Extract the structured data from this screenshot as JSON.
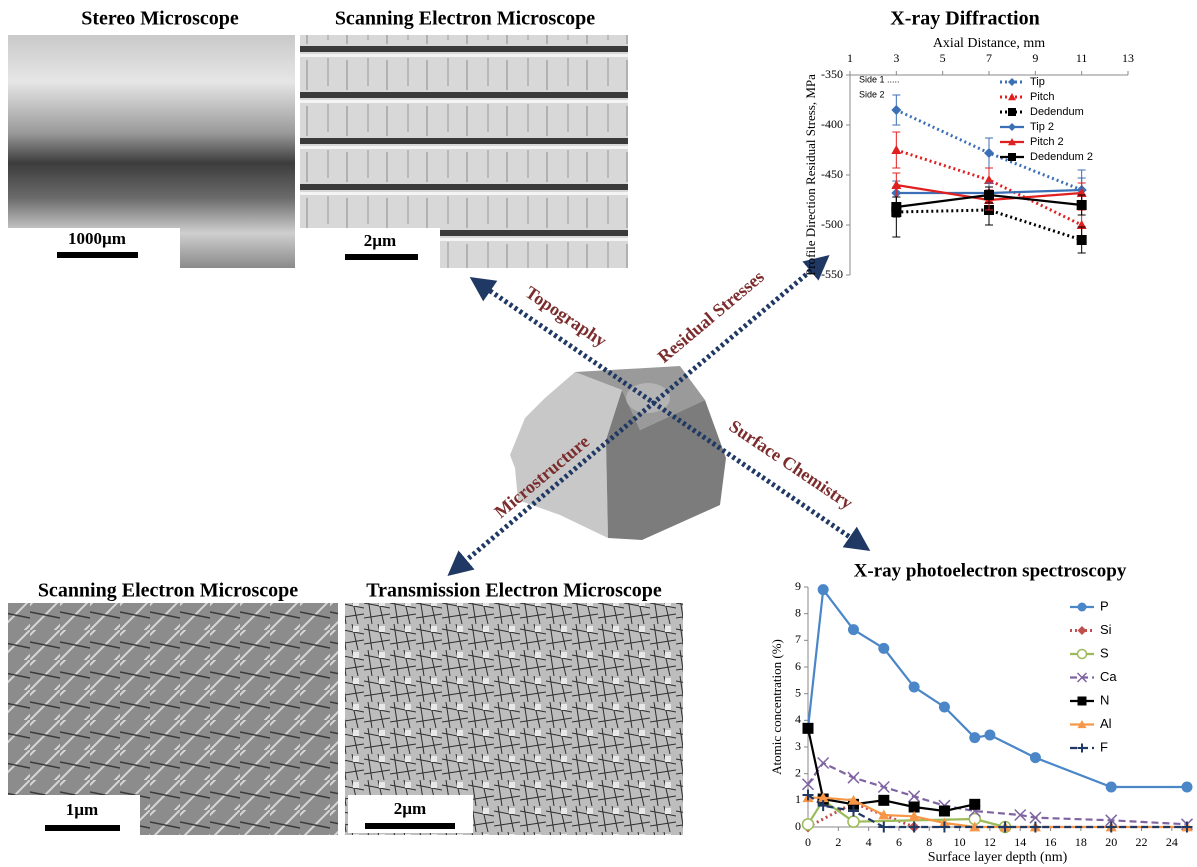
{
  "panels": [
    {
      "title": "Stereo Microscope",
      "scale_bar": "1000µm"
    },
    {
      "title": "Scanning Electron Microscope",
      "scale_bar": "2µm"
    },
    {
      "title": "Scanning Electron Microscope",
      "scale_bar": "1µm"
    },
    {
      "title": "Transmission Electron Microscope",
      "scale_bar": "2µm"
    }
  ],
  "arrows": [
    "Topography",
    "Residual Stresses",
    "Microstructure",
    "Surface Chemistry"
  ],
  "chart_data": [
    {
      "type": "line",
      "title": "X-ray Diffraction",
      "x_label": "Axial Distance, mm",
      "y_label": "Profile Direction Residual Stress, MPa",
      "annotations": [
        "Side 1 .....",
        "Side 2"
      ],
      "x_axis": "top",
      "xlim": [
        1,
        13
      ],
      "xticks": [
        1,
        3,
        5,
        7,
        9,
        11,
        13
      ],
      "ylim": [
        -550,
        -350
      ],
      "yticks": [
        -550,
        -500,
        -450,
        -400,
        -350
      ],
      "legend": "upper right",
      "series": [
        {
          "name": "Tip",
          "color": "#3b6fb6",
          "style": "dotted",
          "marker": "diamond",
          "x": [
            3,
            7,
            11
          ],
          "values": [
            -385,
            -428,
            -465
          ],
          "errors": [
            15,
            15,
            20
          ]
        },
        {
          "name": "Pitch",
          "color": "#e02020",
          "style": "dotted",
          "marker": "triangle",
          "x": [
            3,
            7,
            11
          ],
          "values": [
            -425,
            -455,
            -500
          ],
          "errors": [
            18,
            12,
            15
          ]
        },
        {
          "name": "Dedendum",
          "color": "#000000",
          "style": "dotted",
          "marker": "square",
          "x": [
            3,
            7,
            11
          ],
          "values": [
            -487,
            -485,
            -515
          ],
          "errors": [
            25,
            15,
            13
          ]
        },
        {
          "name": "Tip 2",
          "color": "#3b6fb6",
          "style": "solid",
          "marker": "diamond",
          "x": [
            3,
            7,
            11
          ],
          "values": [
            -468,
            -468,
            -465
          ],
          "errors": [
            12,
            10,
            12
          ]
        },
        {
          "name": "Pitch 2",
          "color": "#e02020",
          "style": "solid",
          "marker": "triangle",
          "x": [
            3,
            7,
            11
          ],
          "values": [
            -460,
            -475,
            -468
          ],
          "errors": [
            12,
            10,
            10
          ]
        },
        {
          "name": "Dedendum 2",
          "color": "#000000",
          "style": "solid",
          "marker": "square",
          "x": [
            3,
            7,
            11
          ],
          "values": [
            -482,
            -470,
            -480
          ],
          "errors": [
            10,
            8,
            10
          ]
        }
      ]
    },
    {
      "type": "line",
      "title": "X-ray photoelectron spectroscopy",
      "x_label": "Surface layer depth (nm)",
      "y_label": "Atomic concentration (%)",
      "x_axis": "bottom",
      "xlim": [
        0,
        25
      ],
      "xticks": [
        0,
        2,
        4,
        6,
        8,
        10,
        12,
        14,
        16,
        18,
        20,
        22,
        24
      ],
      "ylim": [
        0,
        9
      ],
      "yticks": [
        0,
        1,
        2,
        3,
        4,
        5,
        6,
        7,
        8,
        9
      ],
      "legend": "right",
      "series": [
        {
          "name": "P",
          "color": "#4a86c8",
          "style": "solid",
          "marker": "circle",
          "x": [
            0,
            1,
            3,
            5,
            7,
            9,
            11,
            12,
            15,
            20,
            25
          ],
          "values": [
            3.7,
            8.9,
            7.4,
            6.7,
            5.25,
            4.5,
            3.35,
            3.45,
            2.6,
            1.5,
            1.5
          ]
        },
        {
          "name": "Si",
          "color": "#c0504d",
          "style": "dotted",
          "marker": "diamond",
          "x": [
            0,
            3,
            7
          ],
          "values": [
            0,
            0.9,
            0
          ]
        },
        {
          "name": "S",
          "color": "#9bbb59",
          "style": "solid",
          "marker": "circle-open",
          "x": [
            0,
            1,
            3,
            11,
            13
          ],
          "values": [
            0.1,
            1,
            0.2,
            0.3,
            0
          ]
        },
        {
          "name": "Ca",
          "color": "#8064a2",
          "style": "dashed",
          "marker": "x",
          "x": [
            0,
            1,
            3,
            5,
            7,
            9,
            11,
            14,
            15,
            20,
            25
          ],
          "values": [
            1.6,
            2.4,
            1.85,
            1.5,
            1.15,
            0.8,
            0.6,
            0.45,
            0.35,
            0.25,
            0.1
          ]
        },
        {
          "name": "N",
          "color": "#000000",
          "style": "solid",
          "marker": "square",
          "x": [
            0,
            1,
            3,
            5,
            7,
            9,
            11
          ],
          "values": [
            3.7,
            1.05,
            0.85,
            1,
            0.75,
            0.6,
            0.85
          ]
        },
        {
          "name": "Al",
          "color": "#f79646",
          "style": "solid",
          "marker": "triangle",
          "x": [
            0,
            1,
            3,
            5,
            7,
            9,
            11,
            13,
            15,
            20,
            25
          ],
          "values": [
            1.1,
            1.1,
            1,
            0.45,
            0.4,
            0.15,
            0,
            0,
            0,
            0,
            0
          ]
        },
        {
          "name": "F",
          "color": "#1f3864",
          "style": "dashed",
          "marker": "plus",
          "x": [
            0,
            1,
            3,
            5,
            7,
            9,
            13,
            15,
            20,
            25
          ],
          "values": [
            1.2,
            0.8,
            0.6,
            0,
            0,
            0,
            0,
            0,
            0,
            0
          ]
        }
      ]
    }
  ]
}
